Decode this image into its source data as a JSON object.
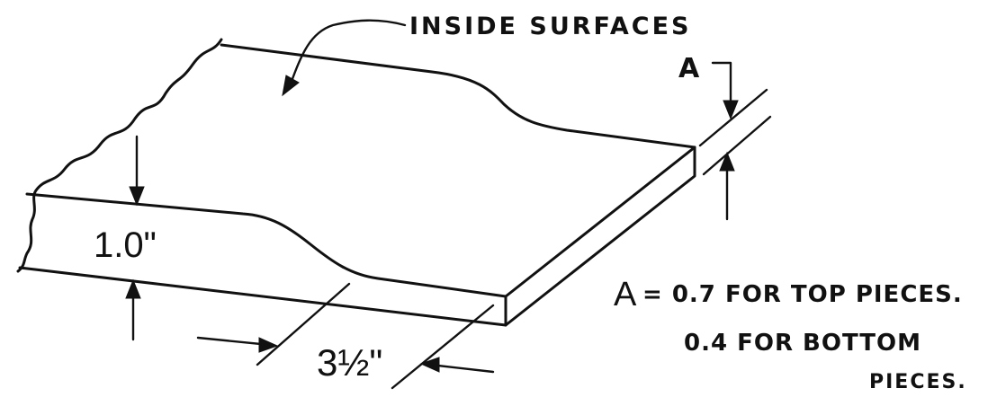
{
  "labels": {
    "inside_surfaces": "INSIDE SURFACES",
    "dim_a": "A",
    "dim_thickness": "1.0\"",
    "dim_width": "3½\"",
    "note_a_prefix": "A",
    "note_line1": "= 0.7 FOR TOP PIECES.",
    "note_line2": "0.4 FOR BOTTOM",
    "note_line3": "PIECES."
  },
  "colors": {
    "ink": "#111111",
    "paper": "#ffffff"
  }
}
